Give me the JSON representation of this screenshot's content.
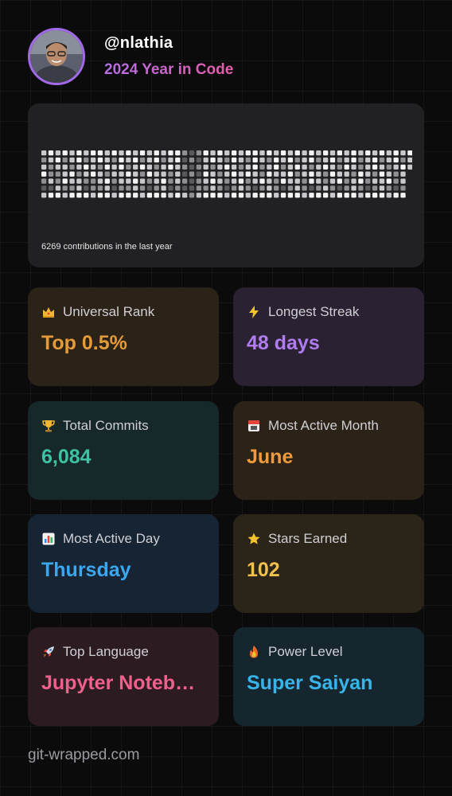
{
  "profile": {
    "handle": "@nlathia",
    "subtitle": "2024 Year in Code"
  },
  "contributions": {
    "caption": "6269 contributions in the last year",
    "weeks": 53,
    "days": 7,
    "levels": [
      [
        3,
        2,
        3,
        4,
        2,
        1,
        3
      ],
      [
        4,
        3,
        2,
        2,
        3,
        1,
        4
      ],
      [
        3,
        4,
        3,
        2,
        2,
        3,
        4
      ],
      [
        4,
        2,
        3,
        3,
        4,
        2,
        3
      ],
      [
        3,
        3,
        2,
        4,
        3,
        2,
        4
      ],
      [
        4,
        4,
        3,
        2,
        3,
        3,
        4
      ],
      [
        3,
        2,
        4,
        3,
        2,
        1,
        4
      ],
      [
        4,
        3,
        3,
        4,
        2,
        2,
        3
      ],
      [
        4,
        4,
        2,
        3,
        3,
        2,
        4
      ],
      [
        3,
        3,
        4,
        2,
        4,
        3,
        4
      ],
      [
        4,
        2,
        3,
        3,
        2,
        1,
        3
      ],
      [
        3,
        4,
        4,
        3,
        3,
        2,
        4
      ],
      [
        4,
        3,
        2,
        4,
        3,
        2,
        4
      ],
      [
        3,
        4,
        3,
        3,
        4,
        3,
        4
      ],
      [
        4,
        2,
        4,
        2,
        3,
        2,
        3
      ],
      [
        3,
        3,
        3,
        4,
        2,
        1,
        4
      ],
      [
        4,
        4,
        2,
        3,
        3,
        2,
        4
      ],
      [
        3,
        2,
        3,
        3,
        4,
        3,
        4
      ],
      [
        4,
        3,
        4,
        2,
        2,
        1,
        3
      ],
      [
        4,
        4,
        3,
        3,
        3,
        2,
        4
      ],
      [
        2,
        1,
        2,
        1,
        2,
        1,
        3
      ],
      [
        1,
        2,
        1,
        2,
        1,
        1,
        2
      ],
      [
        2,
        1,
        2,
        1,
        2,
        2,
        3
      ],
      [
        4,
        3,
        3,
        4,
        3,
        2,
        4
      ],
      [
        3,
        4,
        2,
        3,
        4,
        3,
        4
      ],
      [
        4,
        3,
        3,
        2,
        3,
        2,
        4
      ],
      [
        3,
        2,
        4,
        3,
        2,
        1,
        3
      ],
      [
        4,
        4,
        3,
        4,
        3,
        2,
        4
      ],
      [
        3,
        3,
        2,
        3,
        4,
        3,
        4
      ],
      [
        4,
        2,
        3,
        4,
        2,
        2,
        3
      ],
      [
        4,
        4,
        4,
        3,
        3,
        1,
        4
      ],
      [
        3,
        3,
        2,
        2,
        4,
        2,
        4
      ],
      [
        4,
        2,
        3,
        4,
        3,
        3,
        4
      ],
      [
        3,
        4,
        4,
        3,
        2,
        2,
        3
      ],
      [
        4,
        3,
        2,
        3,
        4,
        1,
        4
      ],
      [
        3,
        4,
        3,
        4,
        3,
        2,
        4
      ],
      [
        4,
        2,
        4,
        2,
        3,
        3,
        4
      ],
      [
        3,
        3,
        3,
        3,
        2,
        2,
        3
      ],
      [
        4,
        4,
        2,
        4,
        4,
        1,
        4
      ],
      [
        3,
        2,
        3,
        3,
        3,
        2,
        4
      ],
      [
        4,
        3,
        4,
        2,
        2,
        3,
        4
      ],
      [
        3,
        4,
        3,
        4,
        3,
        2,
        3
      ],
      [
        4,
        2,
        2,
        3,
        4,
        1,
        4
      ],
      [
        3,
        3,
        4,
        3,
        2,
        2,
        4
      ],
      [
        4,
        4,
        3,
        2,
        3,
        3,
        4
      ],
      [
        3,
        2,
        2,
        4,
        4,
        2,
        3
      ],
      [
        4,
        3,
        3,
        3,
        2,
        1,
        4
      ],
      [
        3,
        4,
        4,
        2,
        3,
        2,
        4
      ],
      [
        4,
        2,
        3,
        4,
        3,
        3,
        4
      ],
      [
        3,
        3,
        2,
        3,
        4,
        2,
        3
      ],
      [
        4,
        4,
        3,
        2,
        2,
        1,
        4
      ],
      [
        3,
        2,
        4,
        3,
        3,
        2,
        4
      ],
      [
        4,
        3,
        3
      ]
    ],
    "level_colors": [
      "#2e2e31",
      "#5a5a5e",
      "#8f8f94",
      "#c9c9cd",
      "#f4f4f4"
    ]
  },
  "stats": [
    {
      "id": "universal-rank",
      "icon": "crown-icon",
      "label": "Universal Rank",
      "value": "Top 0.5%",
      "value_color": "#e59b3a",
      "bg": "#2b2218"
    },
    {
      "id": "longest-streak",
      "icon": "lightning-icon",
      "label": "Longest Streak",
      "value": "48 days",
      "value_color": "#b07cf0",
      "bg": "#2a2133"
    },
    {
      "id": "total-commits",
      "icon": "trophy-icon",
      "label": "Total Commits",
      "value": "6,084",
      "value_color": "#3ec2a2",
      "bg": "#16282a"
    },
    {
      "id": "most-active-month",
      "icon": "calendar-icon",
      "label": "Most Active Month",
      "value": "June",
      "value_color": "#ef9a3c",
      "bg": "#2b2218"
    },
    {
      "id": "most-active-day",
      "icon": "bar-chart-icon",
      "label": "Most Active Day",
      "value": "Thursday",
      "value_color": "#3ba7ef",
      "bg": "#162433"
    },
    {
      "id": "stars-earned",
      "icon": "star-icon",
      "label": "Stars Earned",
      "value": "102",
      "value_color": "#f2c14b",
      "bg": "#2b2419"
    },
    {
      "id": "top-language",
      "icon": "rocket-icon",
      "label": "Top Language",
      "value": "Jupyter Notebook",
      "value_color": "#f0608c",
      "bg": "#2c1c22"
    },
    {
      "id": "power-level",
      "icon": "fire-icon",
      "label": "Power Level",
      "value": "Super Saiyan",
      "value_color": "#38b4e8",
      "bg": "#16262f"
    }
  ],
  "footer": {
    "text": "git-wrapped.com"
  }
}
